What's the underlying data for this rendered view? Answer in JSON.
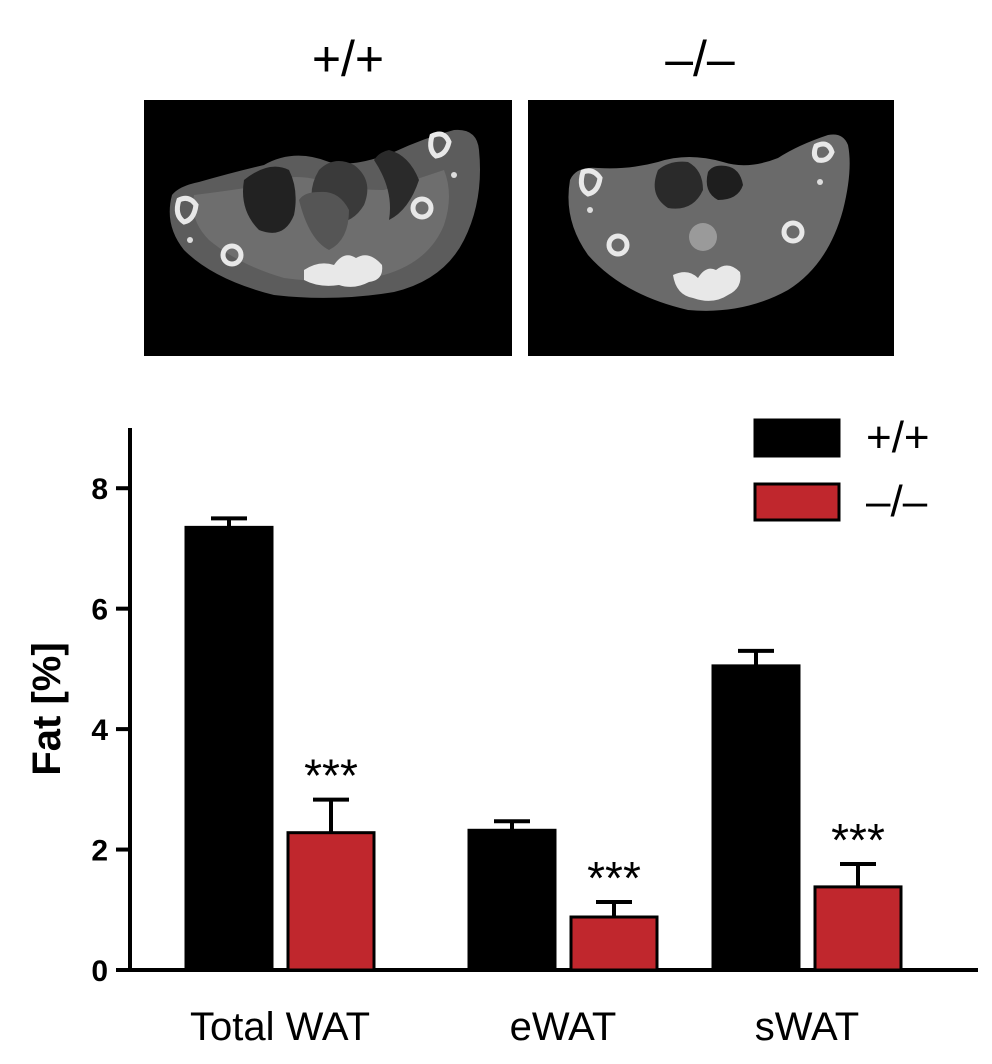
{
  "image_panels": {
    "left_label": "+/+",
    "right_label": "–/–"
  },
  "chart_data": {
    "type": "bar",
    "categories": [
      "Total WAT",
      "eWAT",
      "sWAT"
    ],
    "series": [
      {
        "name": "+/+",
        "color": "#000000",
        "values": [
          7.35,
          2.32,
          5.05
        ],
        "errors": [
          0.15,
          0.15,
          0.25
        ]
      },
      {
        "name": "–/–",
        "color": "#c0272d",
        "values": [
          2.28,
          0.88,
          1.38
        ],
        "errors": [
          0.55,
          0.25,
          0.38
        ]
      }
    ],
    "annotations": [
      {
        "series": 1,
        "category": 0,
        "text": "***"
      },
      {
        "series": 1,
        "category": 1,
        "text": "***"
      },
      {
        "series": 1,
        "category": 2,
        "text": "***"
      }
    ],
    "ylabel": "Fat [%]",
    "xlabel": "",
    "ylim": [
      0,
      9
    ],
    "yticks": [
      0,
      2,
      4,
      6,
      8
    ],
    "legend_position": "top-right",
    "grid": false
  }
}
